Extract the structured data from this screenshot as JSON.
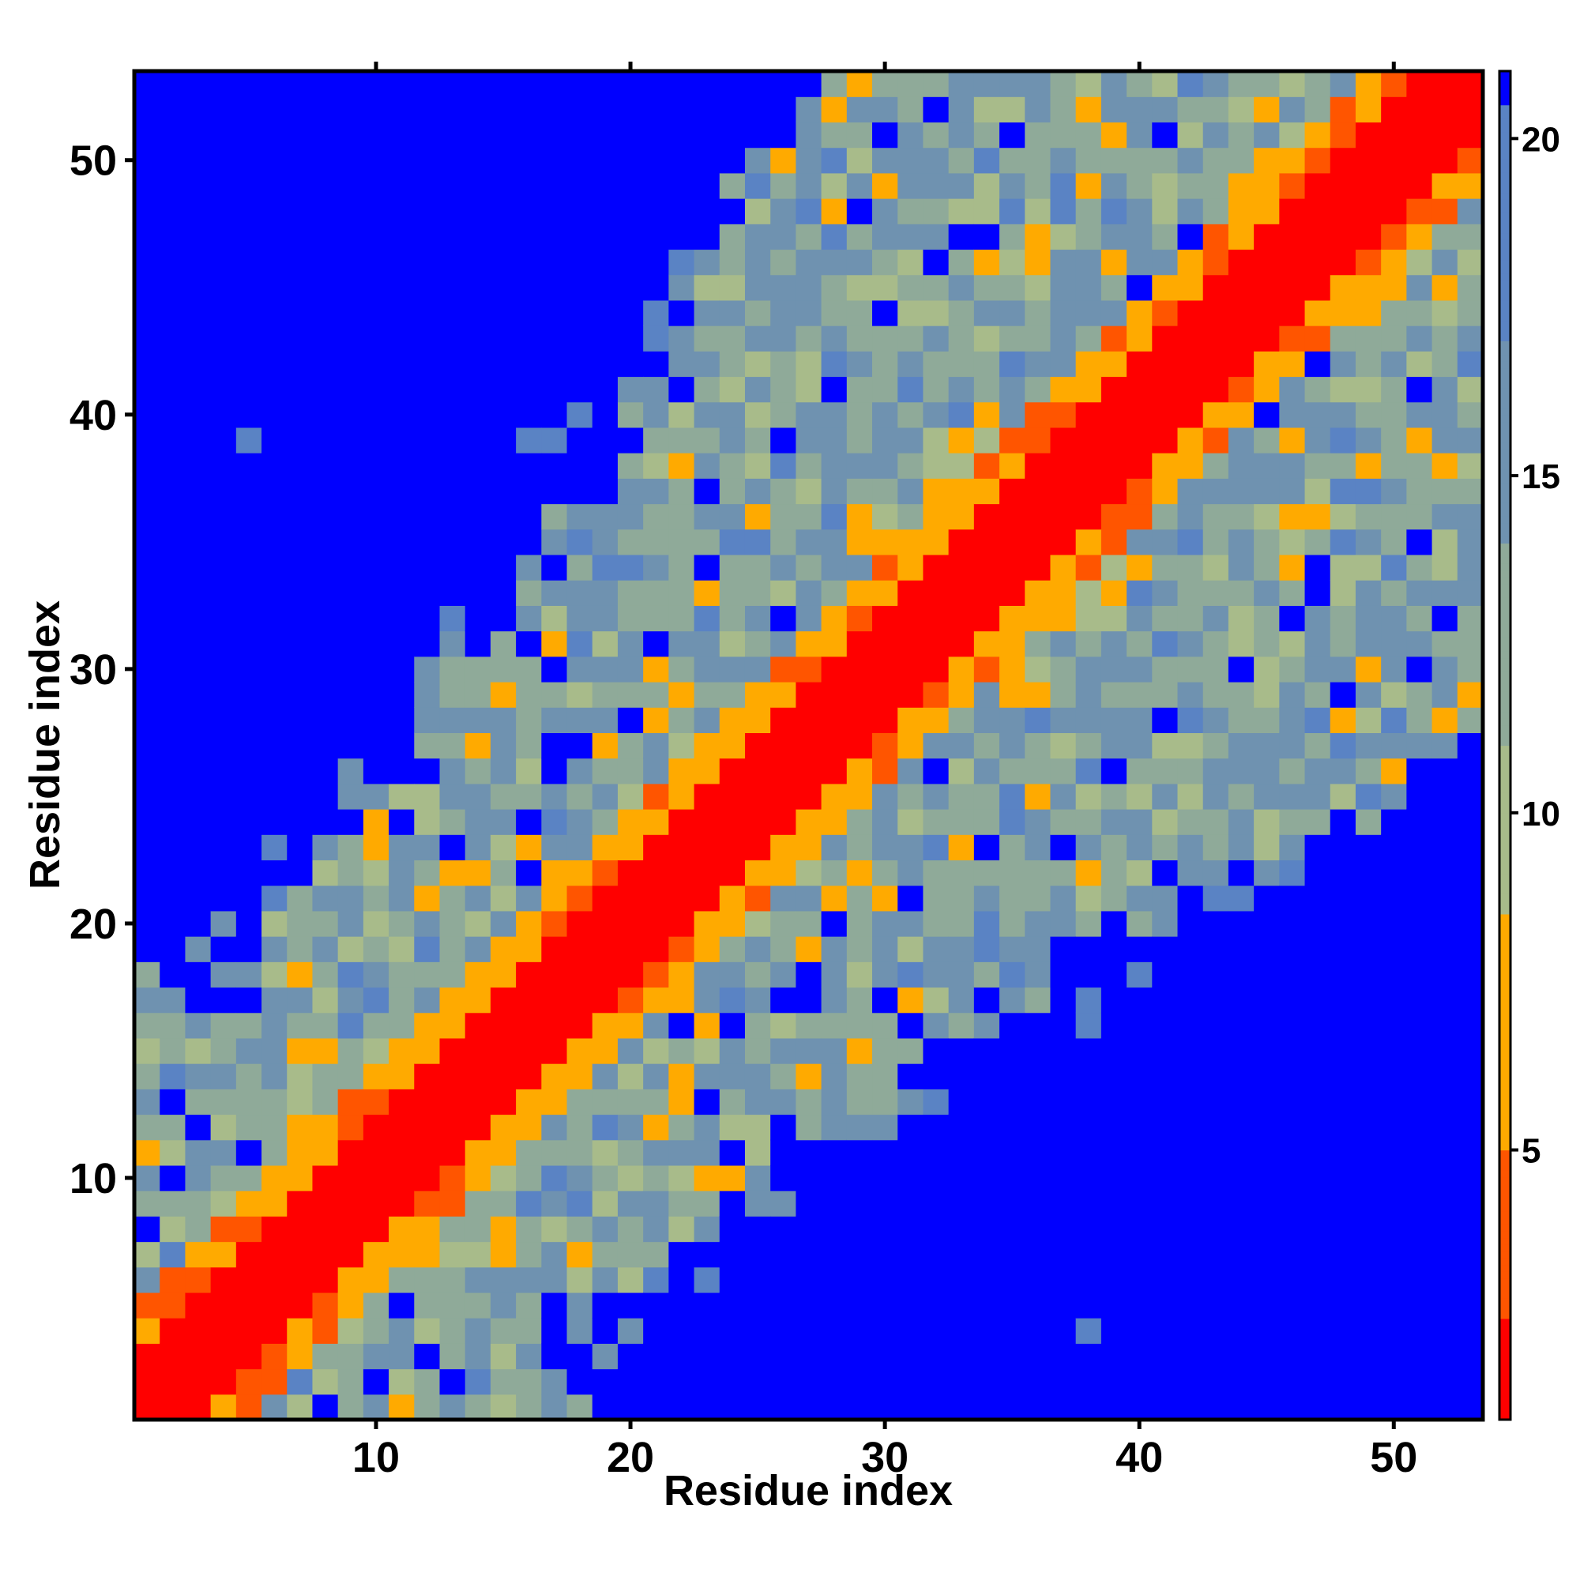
{
  "chart_data": {
    "type": "heatmap",
    "title": "",
    "xlabel": "Residue index",
    "ylabel": "Residue index",
    "x_range": [
      1,
      53
    ],
    "y_range": [
      1,
      53
    ],
    "x_ticks": [
      10,
      20,
      30,
      40,
      50
    ],
    "y_ticks": [
      10,
      20,
      30,
      40,
      50
    ],
    "colorbar": {
      "range": [
        1,
        21
      ],
      "ticks": [
        5,
        10,
        15,
        20
      ],
      "colors_low_to_high": [
        "#ff0000",
        "#ff5500",
        "#ffaa00",
        "#a8bb8a",
        "#8faa99",
        "#6f92b0",
        "#5a83c4",
        "#0000ff"
      ]
    },
    "description_of_values": "Symmetric residue-residue distance map; diagonal ~1 (red), near-diagonal 4-8 (orange), medium 9-16 (green/steel blue), far >20 (blue). Upper-left and lower-right blocks are mostly > 20 with a few exceptions.",
    "exceptions_far_region": [
      {
        "i": 5,
        "j": 39,
        "value": 17
      },
      {
        "i": 16,
        "j": 39,
        "value": 17
      },
      {
        "i": 17,
        "j": 39,
        "value": 17
      },
      {
        "i": 38,
        "j": 4,
        "value": 17
      },
      {
        "i": 38,
        "j": 16,
        "value": 17
      },
      {
        "i": 38,
        "j": 17,
        "value": 17
      }
    ],
    "legend": "none",
    "grid": false
  }
}
